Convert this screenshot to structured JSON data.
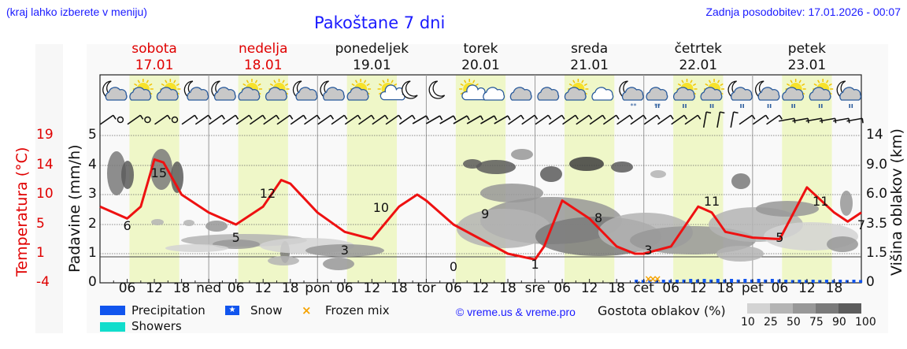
{
  "header": {
    "region_hint": "(kraj lahko izberete v meniju)",
    "title": "Pakoštane 7 dni",
    "last_update": "Zadnja posodobitev: 17.01.2026 - 00:07"
  },
  "days": [
    {
      "name": "sobota",
      "date": "17.01",
      "weekend": true
    },
    {
      "name": "nedelja",
      "date": "18.01",
      "weekend": true
    },
    {
      "name": "ponedeljek",
      "date": "19.01",
      "weekend": false
    },
    {
      "name": "torek",
      "date": "20.01",
      "weekend": false
    },
    {
      "name": "sreda",
      "date": "21.01",
      "weekend": false
    },
    {
      "name": "četrtek",
      "date": "22.01",
      "weekend": false
    },
    {
      "name": "petek",
      "date": "23.01",
      "weekend": false
    }
  ],
  "icons": [
    "moon-cloud",
    "sun-cloud",
    "sun-cloud",
    "moon-cloud",
    "moon-cloud",
    "sun-cloud",
    "sun-cloud",
    "moon-cloud",
    "moon-cloud",
    "sun-cloud",
    "sun-small-cloud",
    "moon",
    "moon",
    "sun-small-cloud",
    "cloud-blue",
    "cloud-gray",
    "cloud-gray",
    "sun-cloud",
    "cloud-blue",
    "moon-cloud-snow",
    "cloud-snow-rain",
    "sun-cloud-rain",
    "sun-cloud-rain",
    "moon-cloud-rain",
    "moon-cloud-rain",
    "sun-cloud-rain",
    "sun-cloud-rain",
    "moon-cloud-rain"
  ],
  "axes": {
    "temperature_title": "Temperatura (°C)",
    "temperature_ticks": [
      "19",
      "14",
      "10",
      "5",
      "1",
      "-4"
    ],
    "precip_title": "Padavine (mm/h)",
    "precip_ticks": [
      "5",
      "4",
      "3",
      "2",
      "1",
      "0"
    ],
    "cloud_height_title": "Višina oblakov (km)",
    "cloud_height_ticks": [
      "14",
      "9.0",
      "6.0",
      "3.5",
      "1.5",
      "0"
    ],
    "x_ticks": [
      "06",
      "12",
      "18",
      "ned",
      "06",
      "12",
      "18",
      "pon",
      "06",
      "12",
      "18",
      "tor",
      "06",
      "12",
      "18",
      "sre",
      "06",
      "12",
      "18",
      "čet",
      "06",
      "12",
      "18",
      "pet",
      "06",
      "12",
      "18"
    ]
  },
  "legend": {
    "precipitation": "Precipitation",
    "showers": "Showers",
    "snow": "Snow",
    "frozen_mix": "Frozen mix",
    "credit": "© vreme.us & vreme.pro",
    "cloud_density_title": "Gostota oblakov (%)",
    "cloud_density_scale": [
      "10",
      "25",
      "50",
      "75",
      "90",
      "100"
    ],
    "cloud_density_colors": [
      "#d3d3d3",
      "#b4b4b4",
      "#989898",
      "#7a7a7a",
      "#5c5c5c"
    ]
  },
  "colors": {
    "temperature": "#ee1111",
    "precipitation": "#1155ee",
    "showers": "#11ddcc",
    "snow": "#1155ee",
    "frozen_mix": "#f5a300",
    "daylight": "#eff7c8",
    "title_blue": "#1a1aff"
  },
  "chart_data": {
    "type": "line",
    "title": "Pakoštane 7 dni",
    "xlabel": "",
    "ylabel": "Temperatura (°C)",
    "x_unit": "hours from 17.01 00:00",
    "ylim": [
      -4,
      19
    ],
    "series": [
      {
        "name": "Temperatura (°C)",
        "x": [
          0,
          6,
          9,
          12,
          14,
          18,
          24,
          30,
          36,
          40,
          42,
          48,
          54,
          60,
          66,
          70,
          72,
          78,
          84,
          90,
          96,
          98,
          102,
          108,
          114,
          118,
          120,
          126,
          132,
          135,
          138,
          144,
          150,
          156,
          162,
          165,
          168
        ],
        "values": [
          8,
          6,
          8,
          15,
          14.5,
          10,
          7,
          5,
          8,
          12,
          11.5,
          7,
          4,
          3,
          8,
          10,
          9,
          5,
          3,
          1,
          0,
          2,
          9,
          6,
          2,
          1,
          1,
          2,
          8,
          7,
          4,
          3.2,
          3,
          11,
          7,
          5.5,
          7
        ]
      }
    ],
    "extrema_labels": [
      {
        "hour": 6,
        "value": "6"
      },
      {
        "hour": 13,
        "value": "15"
      },
      {
        "hour": 30,
        "value": "5"
      },
      {
        "hour": 37,
        "value": "12"
      },
      {
        "hour": 54,
        "value": "3"
      },
      {
        "hour": 62,
        "value": "10"
      },
      {
        "hour": 78,
        "value": "0"
      },
      {
        "hour": 85,
        "value": "9"
      },
      {
        "hour": 96,
        "value": "1"
      },
      {
        "hour": 110,
        "value": "8"
      },
      {
        "hour": 121,
        "value": "3"
      },
      {
        "hour": 135,
        "value": "11"
      },
      {
        "hour": 150,
        "value": "5"
      },
      {
        "hour": 159,
        "value": "11"
      },
      {
        "hour": 168,
        "value": "7"
      }
    ],
    "precipitation_mm_h": {
      "x": [
        120,
        126,
        132,
        138,
        144,
        150,
        156,
        162,
        168
      ],
      "values": [
        0.05,
        0.05,
        0.08,
        0.12,
        0.1,
        0.1,
        0.08,
        0.06,
        0.1
      ]
    },
    "frozen_mix_hours": [
      121,
      122,
      123
    ],
    "cloud_density": "gray contour layers, 1.5–9 km, densest Tue–Wed"
  }
}
